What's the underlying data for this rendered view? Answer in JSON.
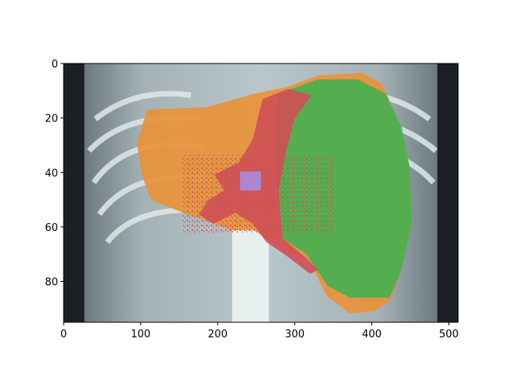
{
  "figure": {
    "x_range": [
      0,
      512
    ],
    "y_range": [
      0,
      95
    ],
    "y_inverted": true,
    "x_ticks": [
      "0",
      "100",
      "200",
      "300",
      "400",
      "500"
    ],
    "y_ticks": [
      "0",
      "20",
      "40",
      "60",
      "80"
    ],
    "x_tick_values": [
      0,
      100,
      200,
      300,
      400,
      500
    ],
    "y_tick_values": [
      0,
      20,
      40,
      60,
      80
    ]
  },
  "overlay_colors": {
    "region_a": "#e8923a",
    "region_b": "#4caf50",
    "region_c": "#cf4f55",
    "region_d": "#a98ad6"
  },
  "background_color": "#9aa8ad"
}
